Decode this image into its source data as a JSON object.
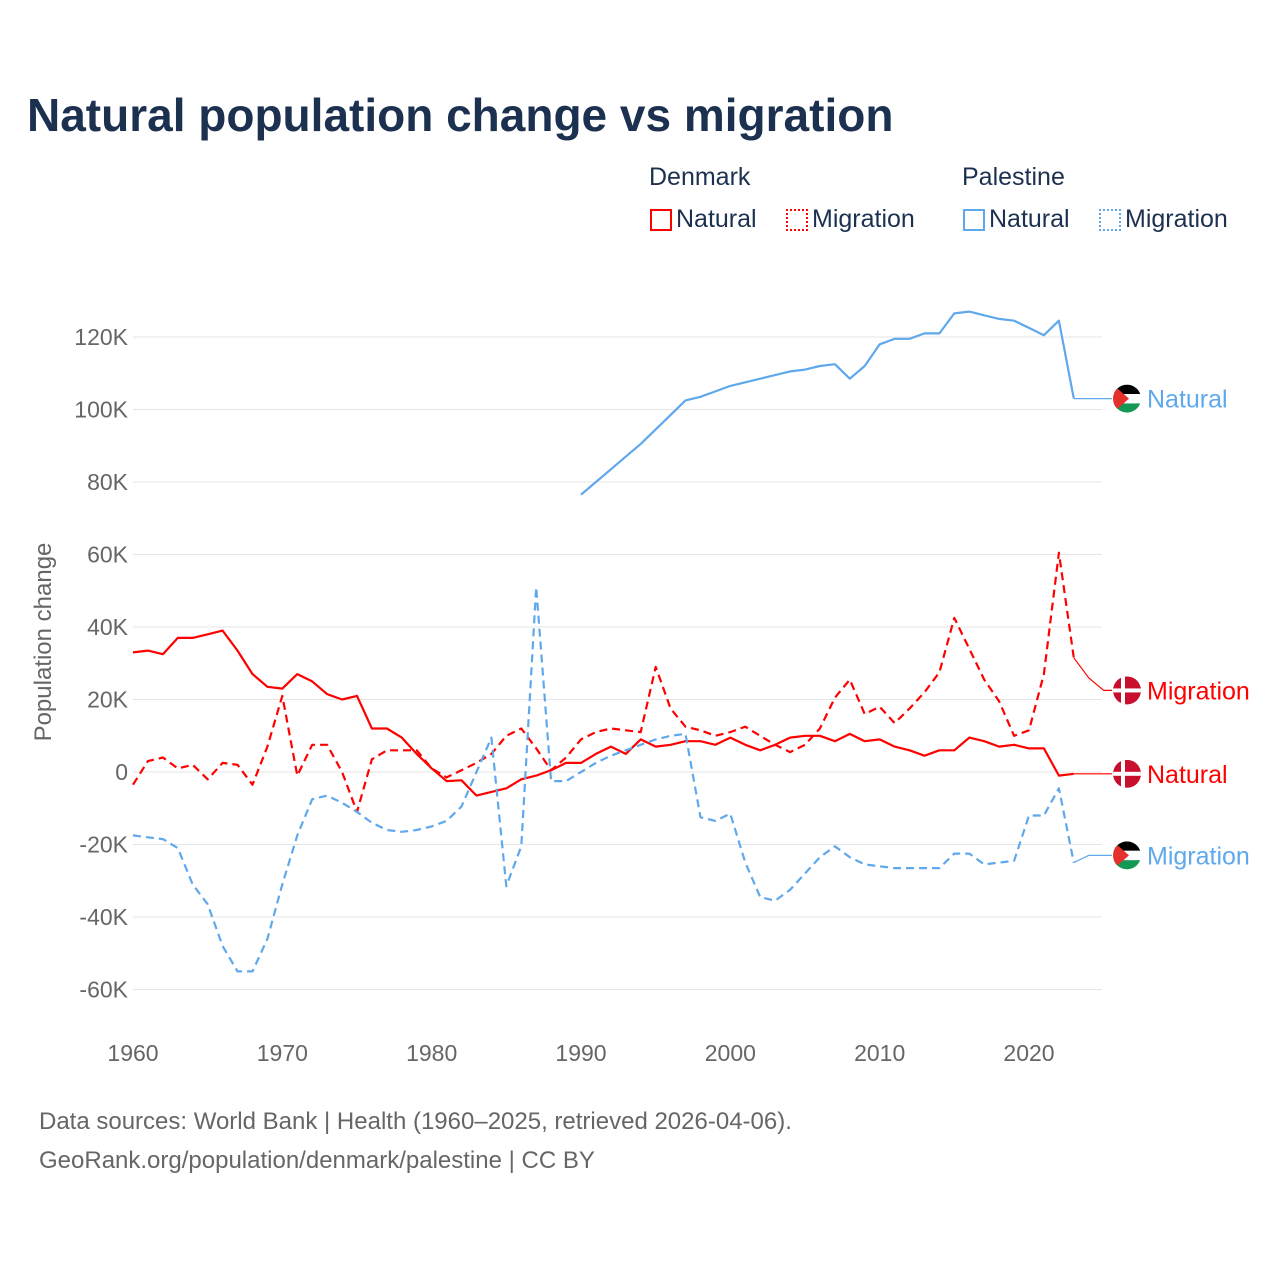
{
  "title": "Natural population change vs migration",
  "legend": {
    "groups": [
      {
        "name": "Denmark",
        "items": [
          "Natural",
          "Migration"
        ],
        "color": "#ff0000"
      },
      {
        "name": "Palestine",
        "items": [
          "Natural",
          "Migration"
        ],
        "color": "#5fa8ec"
      }
    ]
  },
  "footer": {
    "line1": "Data sources: World Bank | Health (1960–2025, retrieved 2026-04-06).",
    "line2": "GeoRank.org/population/denmark/palestine | CC BY"
  },
  "chart_data": {
    "type": "line",
    "title": "Natural population change vs migration",
    "ylabel": "Population change",
    "xlabel": "",
    "xlim": [
      1960,
      2025
    ],
    "ylim": [
      -70000,
      130000
    ],
    "yticks": [
      -60000,
      -40000,
      -20000,
      0,
      20000,
      40000,
      60000,
      80000,
      100000,
      120000
    ],
    "ytick_labels": [
      "-60K",
      "-40K",
      "-20K",
      "0",
      "20K",
      "40K",
      "60K",
      "80K",
      "100K",
      "120K"
    ],
    "xticks": [
      1960,
      1970,
      1980,
      1990,
      2000,
      2010,
      2020
    ],
    "xtick_labels": [
      "1960",
      "1970",
      "1980",
      "1990",
      "2000",
      "2010",
      "2020"
    ],
    "grid": true,
    "series": [
      {
        "name": "Denmark Natural",
        "label": "Natural",
        "color": "#ff0000",
        "dash": false,
        "flag": "denmark",
        "start": 1960,
        "values": [
          33,
          33.5,
          32.5,
          37,
          37,
          38,
          39,
          33.5,
          27,
          23.5,
          23,
          27,
          25,
          21.5,
          20,
          21,
          12,
          12,
          9.5,
          5,
          1,
          -2.5,
          -2.3,
          -6.5,
          -5.5,
          -4.5,
          -2,
          -1,
          0.5,
          2.5,
          2.5,
          5,
          7,
          5,
          9,
          7,
          7.5,
          8.5,
          8.5,
          7.5,
          9.5,
          7.5,
          6,
          7.5,
          9.5,
          10,
          10,
          8.5,
          10.5,
          8.5,
          9,
          7,
          6,
          4.5,
          6,
          6,
          9.5,
          8.5,
          7,
          7.5,
          6.5,
          6.5,
          -1,
          -0.5,
          -0.5,
          -0.5
        ]
      },
      {
        "name": "Denmark Migration",
        "label": "Migration",
        "color": "#ff0000",
        "dash": true,
        "flag": "denmark",
        "start": 1960,
        "values": [
          -3.5,
          3,
          4,
          1,
          2,
          -2,
          2.5,
          2,
          -3.5,
          7,
          21,
          -1,
          7.5,
          7.5,
          0,
          -11,
          3.5,
          6,
          6,
          6,
          1,
          -1.5,
          0.5,
          2.5,
          5,
          10,
          12,
          6.5,
          0.5,
          4,
          9,
          11,
          12,
          11.5,
          11,
          29,
          17.5,
          12.5,
          11.5,
          10,
          11,
          12.5,
          10,
          7.5,
          5.5,
          7.5,
          12,
          20.5,
          25.5,
          16,
          18,
          13.5,
          17.5,
          22,
          27.5,
          42.5,
          34,
          25.5,
          19.5,
          10,
          11.5,
          27,
          60.5,
          31.5,
          26,
          22.5
        ]
      },
      {
        "name": "Palestine Natural",
        "label": "Natural",
        "color": "#5fa8ec",
        "dash": false,
        "flag": "palestine",
        "start": 1990,
        "values": [
          76.5,
          80,
          83.5,
          87,
          90.5,
          94.5,
          98.5,
          102.5,
          103.5,
          105,
          106.5,
          107.5,
          108.5,
          109.5,
          110.5,
          111,
          112,
          112.5,
          108.5,
          112,
          118,
          119.5,
          119.5,
          121,
          121,
          126.5,
          127,
          126,
          125,
          124.5,
          122.5,
          120.5,
          124.5,
          103,
          103,
          103
        ]
      },
      {
        "name": "Palestine Migration",
        "label": "Migration",
        "color": "#5fa8ec",
        "dash": true,
        "flag": "palestine",
        "start": 1960,
        "values": [
          -17.5,
          -18,
          -18.5,
          -21,
          -31,
          -36.5,
          -48,
          -55,
          -55,
          -46,
          -31,
          -17.5,
          -7.5,
          -6.5,
          -8.5,
          -11,
          -14,
          -16,
          -16.5,
          -16,
          -15,
          -13.5,
          -9.5,
          0,
          9.5,
          -31.5,
          -20.5,
          51,
          -2.5,
          -2.5,
          0,
          2.5,
          4.5,
          6,
          7.5,
          9,
          10,
          10.5,
          -12.5,
          -13.5,
          -11.5,
          -25,
          -34.5,
          -35.5,
          -32.5,
          -28,
          -23.5,
          -20.5,
          -23.5,
          -25.5,
          -26,
          -26.5,
          -26.5,
          -26.5,
          -26.5,
          -22.5,
          -22.5,
          -25.5,
          -25,
          -24.5,
          -12,
          -12,
          -4.5,
          -25,
          -23,
          -23
        ]
      }
    ],
    "value_unit": "thousands"
  }
}
